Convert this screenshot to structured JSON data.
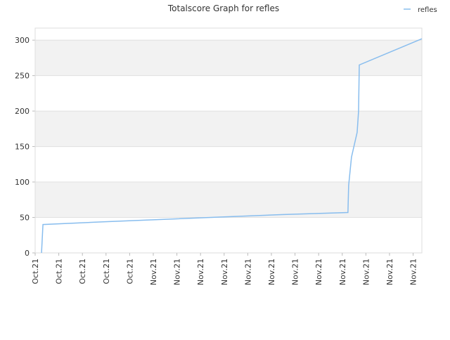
{
  "chart_data": {
    "type": "line",
    "title": "Totalscore Graph for refles",
    "categories": [
      "Oct.21",
      "Oct.21",
      "Oct.21",
      "Oct.21",
      "Oct.21",
      "Nov.21",
      "Nov.21",
      "Nov.21",
      "Nov.21",
      "Nov.21",
      "Nov.21",
      "Nov.21",
      "Nov.21",
      "Nov.21",
      "Nov.21",
      "Nov.21",
      "Nov.21"
    ],
    "series": [
      {
        "name": "refles",
        "color": "#88bdee",
        "x": [
          0.27,
          0.33,
          2.98,
          7.44,
          10.42,
          13.24,
          13.27,
          13.39,
          13.63,
          13.69,
          13.72,
          16.37
        ],
        "values": [
          0,
          40,
          44,
          50,
          54,
          57,
          95,
          135,
          170,
          200,
          265,
          302
        ]
      }
    ],
    "xlim": [
      0,
      16.37
    ],
    "ylim": [
      0,
      317
    ],
    "yticks": [
      0,
      50,
      100,
      150,
      200,
      250,
      300
    ],
    "grid": true,
    "legend": "top-right"
  }
}
